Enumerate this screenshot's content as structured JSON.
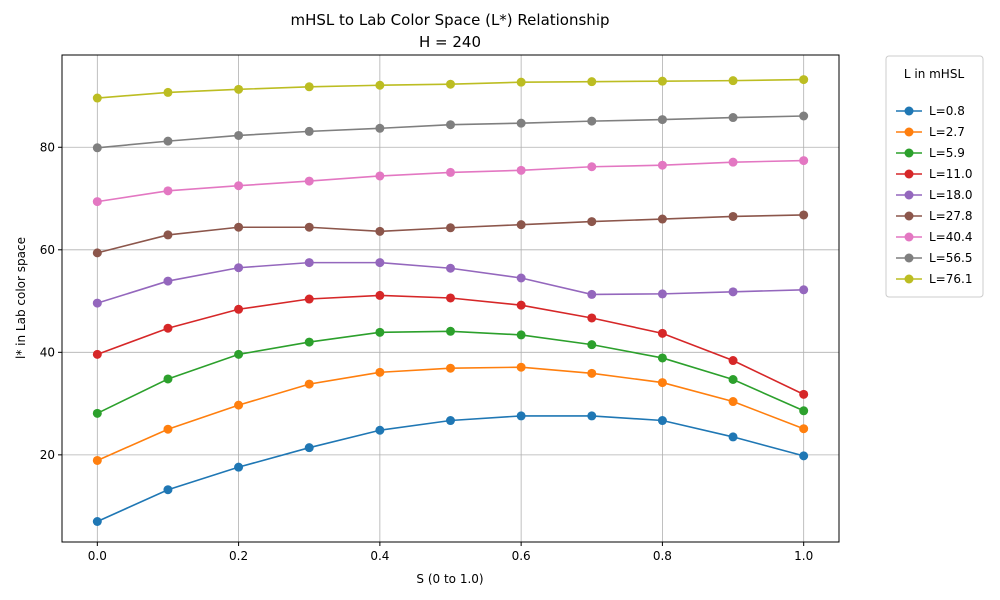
{
  "chart_data": {
    "type": "line",
    "title": "mHSL to Lab Color Space (L*) Relationship",
    "subtitle": "H = 240",
    "xlabel": "S (0 to 1.0)",
    "ylabel": "l* in Lab color space",
    "xlim": [
      -0.05,
      1.05
    ],
    "ylim": [
      3,
      98
    ],
    "xticks": [
      0.0,
      0.2,
      0.4,
      0.6,
      0.8,
      1.0
    ],
    "xtick_labels": [
      "0.0",
      "0.2",
      "0.4",
      "0.6",
      "0.8",
      "1.0"
    ],
    "yticks": [
      20,
      40,
      60,
      80
    ],
    "ytick_labels": [
      "20",
      "40",
      "60",
      "80"
    ],
    "grid": true,
    "legend_title": "L in mHSL",
    "legend_placement": "outside-top-right",
    "x": [
      0.0,
      0.1,
      0.2,
      0.3,
      0.4,
      0.5,
      0.6,
      0.7,
      0.8,
      0.9,
      1.0
    ],
    "series": [
      {
        "name": "L=0.8",
        "color": "#1f77b4",
        "values": [
          7.0,
          13.2,
          17.6,
          21.4,
          24.8,
          26.7,
          27.6,
          27.6,
          26.7,
          23.5,
          19.8
        ]
      },
      {
        "name": "L=2.7",
        "color": "#ff7f0e",
        "values": [
          18.9,
          25.0,
          29.7,
          33.8,
          36.1,
          36.9,
          37.1,
          35.9,
          34.1,
          30.4,
          25.1
        ]
      },
      {
        "name": "L=5.9",
        "color": "#2ca02c",
        "values": [
          28.1,
          34.8,
          39.6,
          42.0,
          43.9,
          44.1,
          43.4,
          41.5,
          38.9,
          34.7,
          28.6
        ]
      },
      {
        "name": "L=11.0",
        "color": "#d62728",
        "values": [
          39.6,
          44.7,
          48.4,
          50.4,
          51.1,
          50.6,
          49.2,
          46.7,
          43.7,
          38.4,
          31.8
        ]
      },
      {
        "name": "L=18.0",
        "color": "#9467bd",
        "values": [
          49.6,
          53.9,
          56.5,
          57.5,
          57.5,
          56.4,
          54.5,
          51.3,
          51.4,
          51.8,
          52.2
        ]
      },
      {
        "name": "L=27.8",
        "color": "#8c564b",
        "values": [
          59.4,
          62.9,
          64.4,
          64.4,
          63.6,
          64.3,
          64.9,
          65.5,
          66.0,
          66.5,
          66.8
        ]
      },
      {
        "name": "L=40.4",
        "color": "#e377c2",
        "values": [
          69.4,
          71.5,
          72.5,
          73.4,
          74.4,
          75.1,
          75.5,
          76.2,
          76.5,
          77.1,
          77.4
        ]
      },
      {
        "name": "L=56.5",
        "color": "#7f7f7f",
        "values": [
          79.9,
          81.2,
          82.3,
          83.1,
          83.7,
          84.4,
          84.7,
          85.1,
          85.4,
          85.8,
          86.1
        ]
      },
      {
        "name": "L=76.1",
        "color": "#bcbd22",
        "values": [
          89.6,
          90.7,
          91.3,
          91.8,
          92.1,
          92.3,
          92.7,
          92.8,
          92.9,
          93.0,
          93.2
        ]
      }
    ]
  }
}
